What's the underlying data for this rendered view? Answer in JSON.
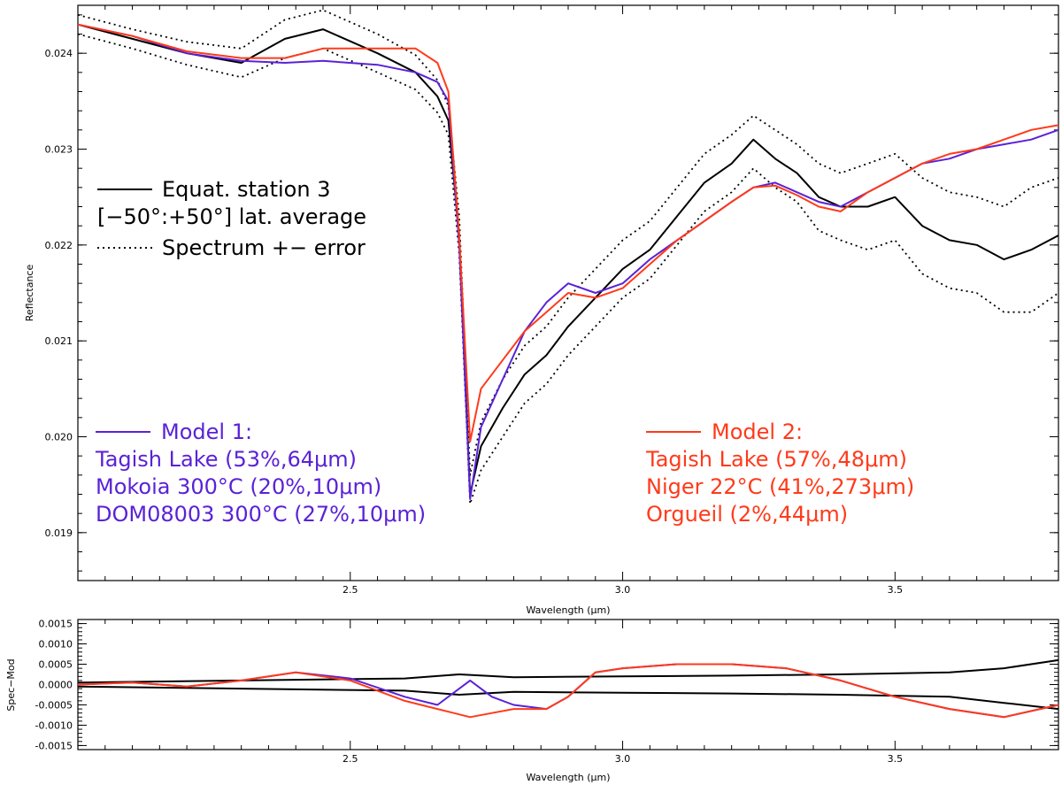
{
  "chart_data": [
    {
      "type": "line",
      "panel": "main",
      "xlabel": "Wavelength (μm)",
      "ylabel": "Reflectance",
      "xlim": [
        2.0,
        3.8
      ],
      "ylim": [
        0.0185,
        0.0245
      ],
      "x_ticks": [
        "2.5",
        "3.0",
        "3.5"
      ],
      "y_ticks": [
        "0.019",
        "0.020",
        "0.021",
        "0.022",
        "0.023",
        "0.024"
      ],
      "legend_top": [
        {
          "style": "solid",
          "label": "Equat. station 3"
        },
        {
          "style": "none",
          "label": "[−50°:+50°] lat. average"
        },
        {
          "style": "dotted",
          "label": "Spectrum +− error"
        }
      ],
      "legend_model1": {
        "title": "Model 1:",
        "lines": [
          "Tagish Lake (53%,64μm)",
          "Mokoia 300°C (20%,10μm)",
          "DOM08003 300°C (27%,10μm)"
        ]
      },
      "legend_model2": {
        "title": "Model 2:",
        "lines": [
          "Tagish Lake (57%,48μm)",
          "Niger 22°C (41%,273μm)",
          "Orgueil (2%,44μm)"
        ]
      },
      "series": [
        {
          "name": "Equat. station 3",
          "color": "#000000",
          "style": "solid",
          "x": [
            2.0,
            2.1,
            2.2,
            2.3,
            2.38,
            2.45,
            2.55,
            2.62,
            2.66,
            2.68,
            2.7,
            2.72,
            2.74,
            2.78,
            2.82,
            2.86,
            2.9,
            2.95,
            3.0,
            3.05,
            3.1,
            3.15,
            3.2,
            3.24,
            3.28,
            3.32,
            3.36,
            3.4,
            3.45,
            3.5,
            3.55,
            3.6,
            3.65,
            3.7,
            3.75,
            3.8
          ],
          "y": [
            0.0243,
            0.02415,
            0.024,
            0.0239,
            0.02415,
            0.02425,
            0.024,
            0.0238,
            0.02355,
            0.0233,
            0.0221,
            0.0194,
            0.0199,
            0.0203,
            0.02065,
            0.02085,
            0.02115,
            0.02145,
            0.02175,
            0.02195,
            0.0223,
            0.02265,
            0.02285,
            0.0231,
            0.0229,
            0.02275,
            0.0225,
            0.0224,
            0.0224,
            0.0225,
            0.0222,
            0.02205,
            0.022,
            0.02185,
            0.02195,
            0.0221
          ]
        },
        {
          "name": "Spectrum + error",
          "color": "#000000",
          "style": "dotted",
          "x": [
            2.0,
            2.1,
            2.2,
            2.3,
            2.38,
            2.45,
            2.55,
            2.62,
            2.66,
            2.68,
            2.7,
            2.72,
            2.74,
            2.78,
            2.82,
            2.86,
            2.9,
            2.95,
            3.0,
            3.05,
            3.1,
            3.15,
            3.2,
            3.24,
            3.28,
            3.32,
            3.36,
            3.4,
            3.45,
            3.5,
            3.55,
            3.6,
            3.65,
            3.7,
            3.75,
            3.8
          ],
          "y": [
            0.0244,
            0.02425,
            0.02412,
            0.02405,
            0.02435,
            0.02445,
            0.0242,
            0.02398,
            0.02372,
            0.02345,
            0.0223,
            0.0196,
            0.02015,
            0.0206,
            0.02095,
            0.02115,
            0.02145,
            0.02175,
            0.02205,
            0.02225,
            0.0226,
            0.02295,
            0.02315,
            0.02335,
            0.0232,
            0.02305,
            0.02285,
            0.02275,
            0.02285,
            0.02295,
            0.0227,
            0.02255,
            0.0225,
            0.0224,
            0.0226,
            0.0227
          ]
        },
        {
          "name": "Spectrum - error",
          "color": "#000000",
          "style": "dotted",
          "x": [
            2.0,
            2.1,
            2.2,
            2.3,
            2.38,
            2.45,
            2.55,
            2.62,
            2.66,
            2.68,
            2.7,
            2.72,
            2.74,
            2.78,
            2.82,
            2.86,
            2.9,
            2.95,
            3.0,
            3.05,
            3.1,
            3.15,
            3.2,
            3.24,
            3.28,
            3.32,
            3.36,
            3.4,
            3.45,
            3.5,
            3.55,
            3.6,
            3.65,
            3.7,
            3.75,
            3.8
          ],
          "y": [
            0.0242,
            0.02405,
            0.02388,
            0.02375,
            0.02395,
            0.02405,
            0.0238,
            0.02362,
            0.02338,
            0.02315,
            0.0219,
            0.0193,
            0.01965,
            0.02,
            0.02035,
            0.02055,
            0.02085,
            0.02115,
            0.02145,
            0.02165,
            0.022,
            0.02235,
            0.02255,
            0.0228,
            0.0226,
            0.02245,
            0.02215,
            0.02205,
            0.02195,
            0.02205,
            0.0217,
            0.02155,
            0.0215,
            0.0213,
            0.0213,
            0.0215
          ]
        },
        {
          "name": "Model 1",
          "color": "#5a22d6",
          "style": "solid",
          "x": [
            2.0,
            2.1,
            2.2,
            2.3,
            2.38,
            2.45,
            2.55,
            2.62,
            2.66,
            2.68,
            2.7,
            2.72,
            2.74,
            2.78,
            2.82,
            2.86,
            2.9,
            2.95,
            3.0,
            3.05,
            3.1,
            3.15,
            3.2,
            3.24,
            3.28,
            3.32,
            3.36,
            3.4,
            3.45,
            3.5,
            3.55,
            3.6,
            3.65,
            3.7,
            3.75,
            3.8
          ],
          "y": [
            0.0243,
            0.02418,
            0.024,
            0.02392,
            0.0239,
            0.02392,
            0.02388,
            0.0238,
            0.0237,
            0.0235,
            0.022,
            0.01935,
            0.0201,
            0.0206,
            0.0211,
            0.0214,
            0.0216,
            0.0215,
            0.0216,
            0.02185,
            0.02205,
            0.02225,
            0.02245,
            0.0226,
            0.02265,
            0.02255,
            0.02245,
            0.0224,
            0.02255,
            0.0227,
            0.02285,
            0.0229,
            0.023,
            0.02305,
            0.0231,
            0.0232
          ]
        },
        {
          "name": "Model 2",
          "color": "#ff3a1a",
          "style": "solid",
          "x": [
            2.0,
            2.1,
            2.2,
            2.3,
            2.38,
            2.45,
            2.55,
            2.62,
            2.66,
            2.68,
            2.7,
            2.72,
            2.74,
            2.78,
            2.82,
            2.86,
            2.9,
            2.95,
            3.0,
            3.05,
            3.1,
            3.15,
            3.2,
            3.24,
            3.28,
            3.32,
            3.36,
            3.4,
            3.45,
            3.5,
            3.55,
            3.6,
            3.65,
            3.7,
            3.75,
            3.8
          ],
          "y": [
            0.0243,
            0.02418,
            0.02402,
            0.02395,
            0.02395,
            0.02405,
            0.02405,
            0.02405,
            0.0239,
            0.0236,
            0.0221,
            0.01995,
            0.0205,
            0.0208,
            0.0211,
            0.0213,
            0.0215,
            0.02145,
            0.02155,
            0.0218,
            0.02205,
            0.02225,
            0.02245,
            0.0226,
            0.02262,
            0.02252,
            0.0224,
            0.02235,
            0.02255,
            0.0227,
            0.02285,
            0.02295,
            0.023,
            0.0231,
            0.0232,
            0.02325
          ]
        }
      ]
    },
    {
      "type": "line",
      "panel": "residual",
      "xlabel": "Wavelength (μm)",
      "ylabel": "Spec−Mod",
      "xlim": [
        2.0,
        3.8
      ],
      "ylim": [
        -0.0016,
        0.0016
      ],
      "x_ticks": [
        "2.5",
        "3.0",
        "3.5"
      ],
      "y_ticks": [
        "0.0015",
        "0.0010",
        "0.0005",
        "0.0000",
        "-0.0005",
        "-0.0010",
        "-0.0015"
      ],
      "series": [
        {
          "name": "+error",
          "color": "#000000",
          "style": "solid",
          "x": [
            2.0,
            2.3,
            2.6,
            2.7,
            2.8,
            3.0,
            3.2,
            3.4,
            3.6,
            3.7,
            3.8
          ],
          "y": [
            5e-05,
            0.0001,
            0.00015,
            0.00025,
            0.00018,
            0.0002,
            0.00022,
            0.00025,
            0.0003,
            0.0004,
            0.0006
          ]
        },
        {
          "name": "-error",
          "color": "#000000",
          "style": "solid",
          "x": [
            2.0,
            2.3,
            2.6,
            2.7,
            2.8,
            3.0,
            3.2,
            3.4,
            3.6,
            3.7,
            3.8
          ],
          "y": [
            -5e-05,
            -0.0001,
            -0.00015,
            -0.00025,
            -0.00018,
            -0.0002,
            -0.00022,
            -0.00025,
            -0.0003,
            -0.00045,
            -0.0006
          ]
        },
        {
          "name": "Model 1 residual",
          "color": "#5a22d6",
          "style": "solid",
          "x": [
            2.0,
            2.1,
            2.2,
            2.3,
            2.4,
            2.5,
            2.6,
            2.66,
            2.72,
            2.76,
            2.8,
            2.86,
            2.9,
            2.95,
            3.0,
            3.1,
            3.2,
            3.3,
            3.4,
            3.5,
            3.6,
            3.7,
            3.8
          ],
          "y": [
            0.0,
            5e-05,
            -5e-05,
            0.0001,
            0.0003,
            0.00015,
            -0.0003,
            -0.0005,
            0.0001,
            -0.0003,
            -0.0005,
            -0.0006,
            -0.0003,
            0.0003,
            0.0004,
            0.0005,
            0.0005,
            0.0004,
            0.0001,
            -0.0003,
            -0.0006,
            -0.0008,
            -0.0005
          ]
        },
        {
          "name": "Model 2 residual",
          "color": "#ff3a1a",
          "style": "solid",
          "x": [
            2.0,
            2.1,
            2.2,
            2.3,
            2.4,
            2.5,
            2.6,
            2.66,
            2.72,
            2.76,
            2.8,
            2.86,
            2.9,
            2.95,
            3.0,
            3.1,
            3.2,
            3.3,
            3.4,
            3.5,
            3.6,
            3.7,
            3.8
          ],
          "y": [
            0.0,
            5e-05,
            -5e-05,
            0.0001,
            0.0003,
            0.0001,
            -0.0004,
            -0.0006,
            -0.0008,
            -0.0007,
            -0.0006,
            -0.0006,
            -0.0003,
            0.0003,
            0.0004,
            0.0005,
            0.0005,
            0.0004,
            0.0001,
            -0.0003,
            -0.0006,
            -0.0008,
            -0.0005
          ]
        }
      ]
    }
  ]
}
